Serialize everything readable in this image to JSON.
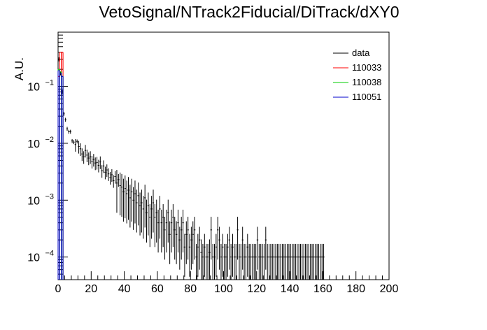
{
  "chart_data": {
    "type": "scatter",
    "title": "VetoSignal/NTrack2Fiducial/DiTrack/dXY0",
    "xlabel": "",
    "ylabel": "A.U.",
    "xlim": [
      0,
      200
    ],
    "ylim": [
      4e-05,
      0.9
    ],
    "y_scale": "log",
    "x_ticks": [
      0,
      20,
      40,
      60,
      80,
      100,
      120,
      140,
      160,
      180,
      200
    ],
    "y_tick_labels": [
      {
        "value": 0.1,
        "base": "10",
        "exp": "−1"
      },
      {
        "value": 0.01,
        "base": "10",
        "exp": "−2"
      },
      {
        "value": 0.001,
        "base": "10",
        "exp": "−3"
      },
      {
        "value": 0.0001,
        "base": "10",
        "exp": "−4"
      }
    ],
    "grid": false,
    "legend_position": "top-right",
    "series": [
      {
        "name": "data",
        "color": "#000000",
        "style": "points-with-errors",
        "bin_width": 1,
        "x": [
          0.5,
          1.5,
          2.5,
          3.5,
          4.5,
          5.5,
          6.5,
          7.5,
          8.5,
          9.5,
          10.5,
          11.5,
          12.5,
          13.5,
          14.5,
          15.5,
          16.5,
          17.5,
          18.5,
          19.5,
          20.5,
          21.5,
          22.5,
          23.5,
          24.5,
          25.5,
          26.5,
          27.5,
          28.5,
          29.5,
          30.5,
          31.5,
          32.5,
          33.5,
          34.5,
          35.5,
          36.5,
          37.5,
          38.5,
          39.5,
          40.5,
          41.5,
          42.5,
          43.5,
          44.5,
          45.5,
          46.5,
          47.5,
          48.5,
          49.5,
          50.5,
          51.5,
          52.5,
          53.5,
          54.5,
          55.5,
          56.5,
          57.5,
          58.5,
          59.5,
          60.5,
          61.5,
          62.5,
          63.5,
          64.5,
          65.5,
          66.5,
          67.5,
          68.5,
          69.5,
          70.5,
          71.5,
          72.5,
          73.5,
          74.5,
          75.5,
          76.5,
          77.5,
          78.5,
          79.5,
          80.5,
          81.5,
          82.5,
          83.5,
          84.5,
          85.5,
          86.5,
          87.5,
          88.5,
          89.5,
          90.5,
          91.5,
          92.5,
          93.5,
          94.5,
          95.5,
          96.5,
          97.5,
          98.5,
          99.5,
          100.5,
          101.5,
          102.5,
          103.5,
          104.5,
          105.5,
          106.5,
          107.5,
          108.5,
          109.5,
          110.5,
          111.5,
          112.5,
          113.5,
          114.5,
          115.5,
          116.5,
          117.5,
          118.5,
          119.5,
          120.5,
          121.5,
          122.5,
          123.5,
          124.5,
          125.5,
          126.5,
          127.5,
          128.5,
          129.5,
          130.5,
          131.5,
          132.5,
          133.5,
          134.5,
          135.5,
          136.5,
          137.5,
          138.5,
          139.5,
          140.5,
          141.5,
          142.5,
          143.5,
          144.5,
          145.5,
          146.5,
          147.5,
          148.5,
          149.5,
          150.5,
          151.5,
          152.5,
          153.5,
          154.5,
          155.5,
          156.5,
          157.5,
          158.5,
          159.5,
          160.5
        ],
        "y": [
          0.3,
          0.17,
          0.08,
          0.033,
          0.026,
          0.018,
          0.016,
          0.016,
          0.011,
          0.0105,
          0.0095,
          0.0108,
          0.0088,
          0.008,
          0.0065,
          0.0058,
          0.0075,
          0.0062,
          0.0055,
          0.0058,
          0.0048,
          0.0052,
          0.0045,
          0.0046,
          0.0041,
          0.0047,
          0.0033,
          0.004,
          0.0031,
          0.0034,
          0.0029,
          0.0025,
          0.0028,
          0.0022,
          0.0026,
          0.002,
          0.0023,
          0.0018,
          0.0017,
          0.0014,
          0.0016,
          0.0013,
          0.0015,
          0.0011,
          0.0014,
          0.001,
          0.0013,
          0.0009,
          0.0012,
          0.0008,
          0.0009,
          0.0007,
          0.0011,
          0.0006,
          0.0008,
          0.0005,
          0.0007,
          0.0009,
          0.0005,
          0.0006,
          0.0004,
          0.0007,
          0.0004,
          0.0005,
          0.0003,
          0.0004,
          0.0006,
          0.00025,
          0.0004,
          0.0005,
          0.0003,
          0.00025,
          0.0004,
          0.0002,
          0.0003,
          0.0004,
          0.00015,
          0.00025,
          0.0003,
          0.00015,
          0.0002,
          0.00025,
          0.0003,
          0.0001,
          0.00015,
          0.0002,
          0.00012,
          0.0001,
          0.00015,
          0.0001,
          0.0001,
          0.00012,
          0.0003,
          0.0001,
          0.0001,
          0.00015,
          0.0003,
          0.0002,
          0.0001,
          0.00015,
          0.0001,
          0.0001,
          0.00015,
          0.0002,
          0.0001,
          0.00015,
          0.0001,
          0.0001,
          0.0003,
          0.0001,
          0.0001,
          0.0002,
          0.0001,
          0.0001,
          0.00015,
          0.0001,
          0.0001,
          0.0001,
          0.0001,
          0.0001,
          0.0002,
          0.0001,
          0.0001,
          0.0001,
          0.0001,
          0.0002,
          0.0001,
          0.0001,
          0.0001,
          0.0001,
          0.0001,
          0.0001,
          0.0001,
          0.0001,
          0.0001,
          0.0001,
          0.0001,
          0.0001,
          0.0001,
          0.0001,
          0.0001,
          0.0001,
          0.0001,
          0.0001,
          0.0001,
          0.0001,
          0.0001,
          0.0001,
          0.0001,
          0.0001,
          0.0001,
          0.0001,
          0.0001,
          0.0001,
          0.0001,
          0.0001,
          0.0001,
          0.0001,
          0.0001,
          0.0001,
          0.0001
        ]
      },
      {
        "name": "110033",
        "color": "#ff0000",
        "style": "histogram",
        "x": [
          0.5,
          1.5,
          2.5
        ],
        "y": [
          0.15,
          0.4,
          0.4
        ]
      },
      {
        "name": "110038",
        "color": "#00cc00",
        "style": "histogram",
        "x": [
          0.5,
          1.5,
          2.5
        ],
        "y": [
          0.2,
          0.18,
          0.15
        ]
      },
      {
        "name": "110051",
        "color": "#0000cc",
        "style": "histogram",
        "x": [
          0.5,
          1.5,
          2.5
        ],
        "y": [
          0.19,
          0.17,
          0.15
        ]
      }
    ]
  }
}
